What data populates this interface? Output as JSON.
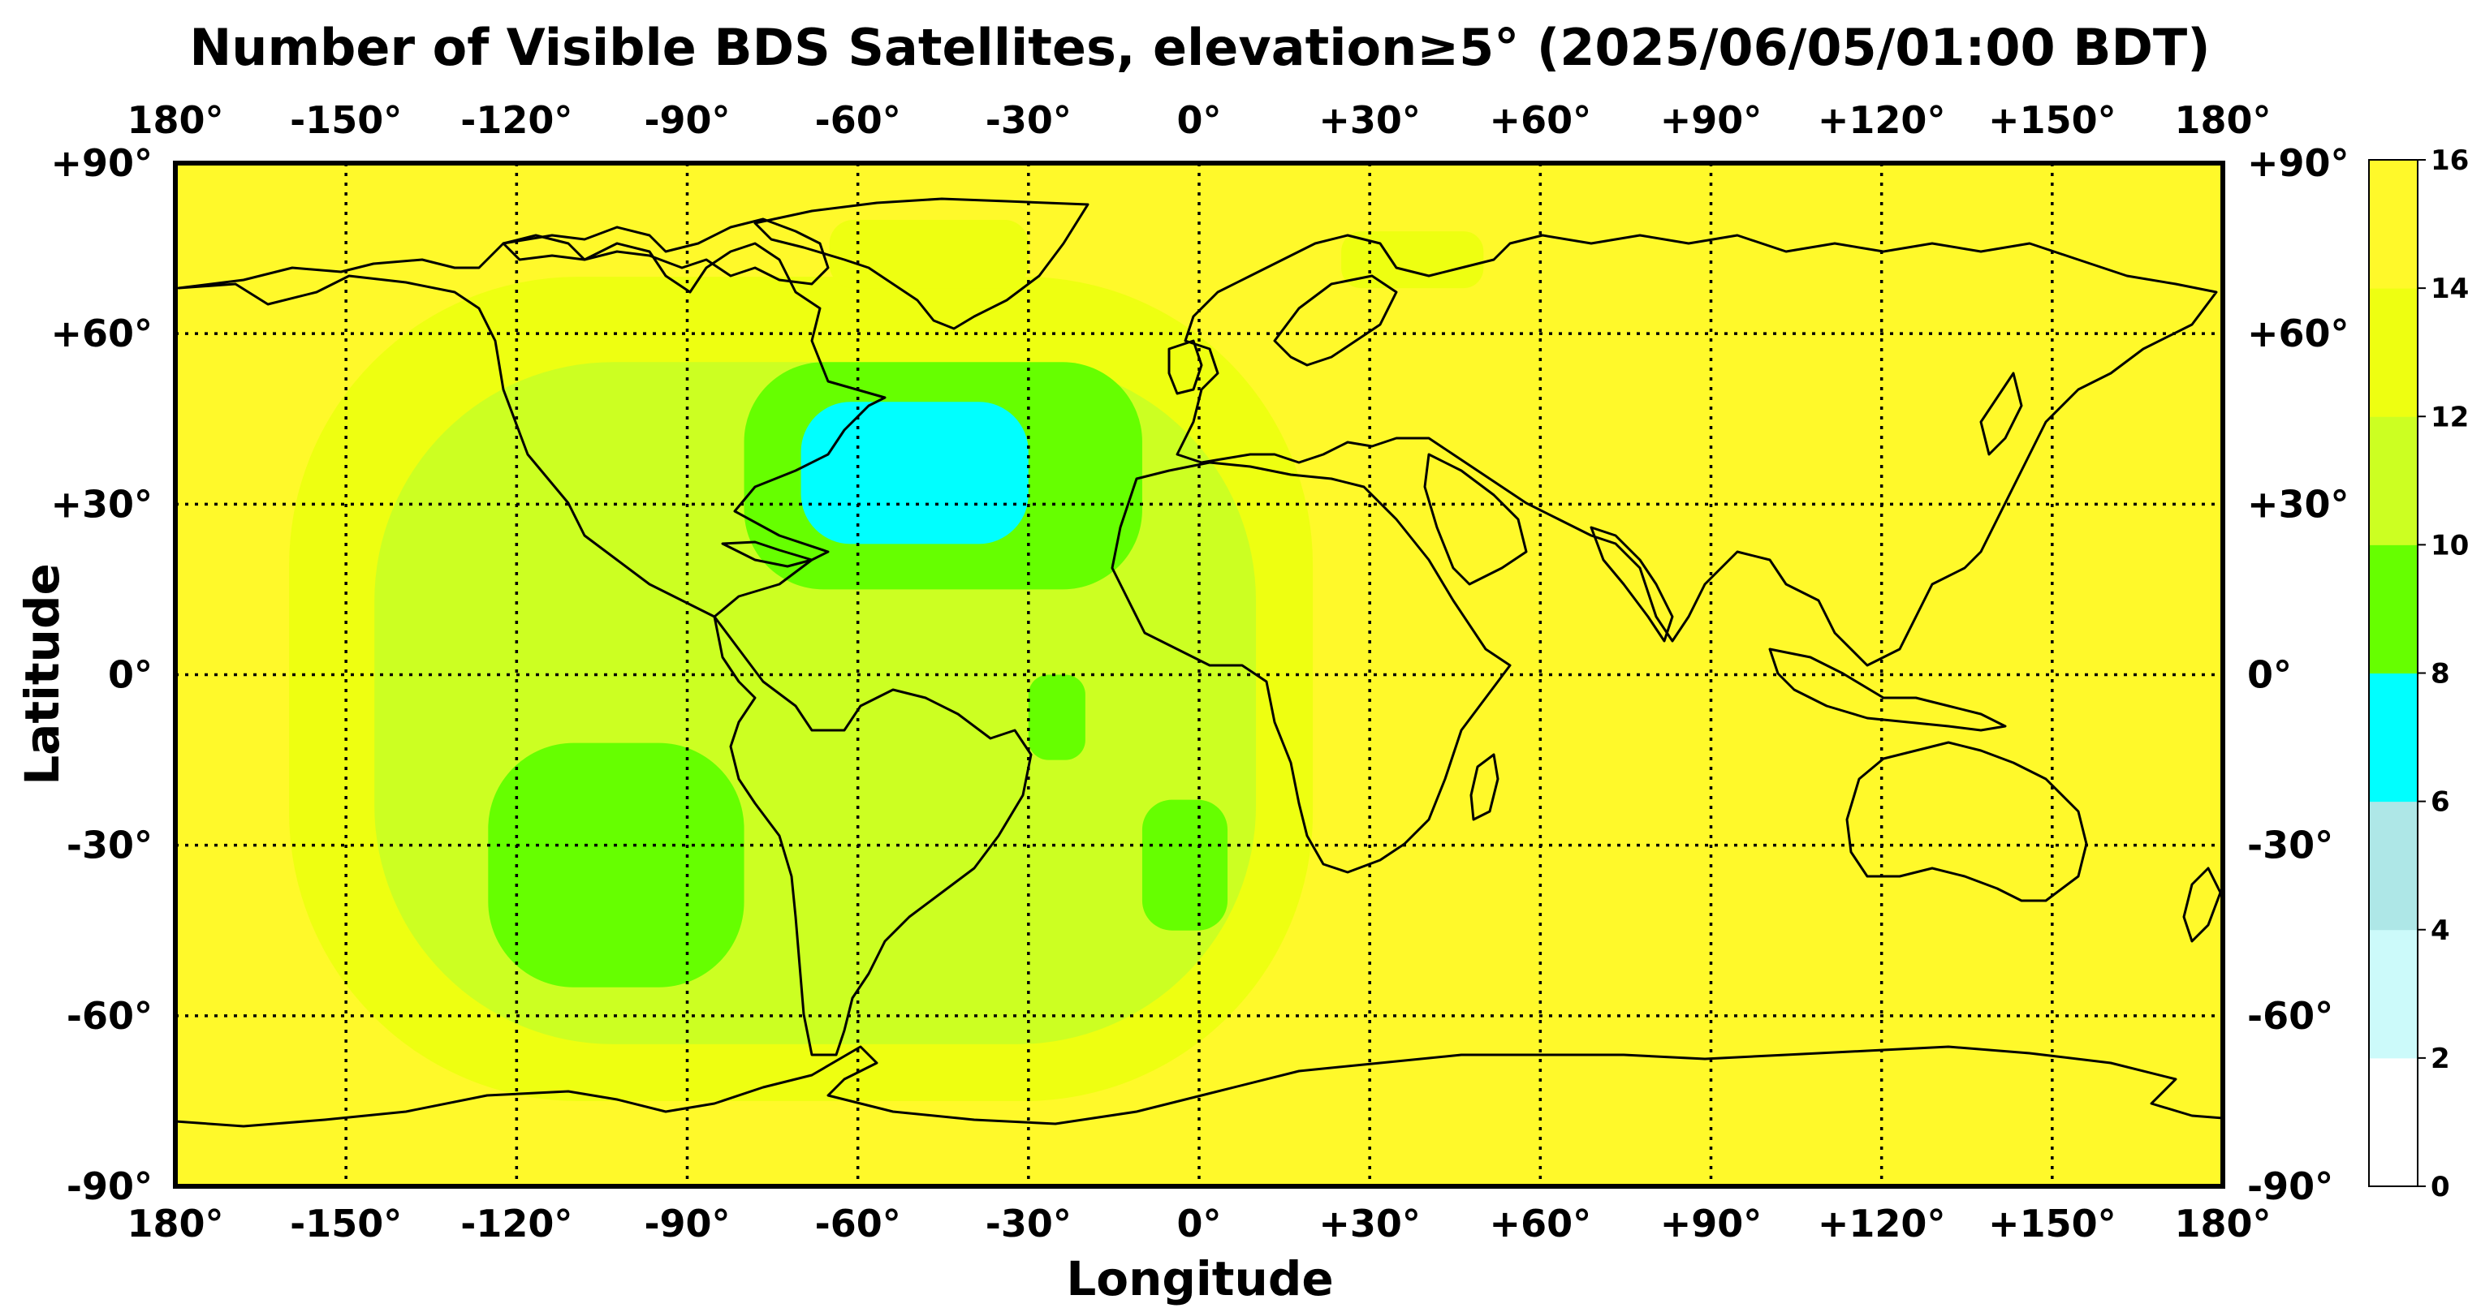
{
  "chart_data": {
    "type": "heatmap",
    "title": "Number of Visible BDS Satellites, elevation≥5° (2025/06/05/01:00 BDT)",
    "xlabel": "Longitude",
    "ylabel": "Latitude",
    "x_ticks": [
      "180°",
      "-150°",
      "-120°",
      "-90°",
      "-60°",
      "-30°",
      "0°",
      "+30°",
      "+60°",
      "+90°",
      "+120°",
      "+150°",
      "180°"
    ],
    "y_ticks": [
      "+90°",
      "+60°",
      "+30°",
      "0°",
      "-30°",
      "-60°",
      "-90°"
    ],
    "xlim": [
      -180,
      180
    ],
    "ylim": [
      -90,
      90
    ],
    "grid": true,
    "colorbar": {
      "ticks": [
        "16",
        "14",
        "12",
        "10",
        "8",
        "6",
        "4",
        "2",
        "0"
      ],
      "bins": [
        {
          "min": 0,
          "max": 2,
          "color": "#ffffff"
        },
        {
          "min": 2,
          "max": 4,
          "color": "#ccfafa"
        },
        {
          "min": 4,
          "max": 6,
          "color": "#aee7e7"
        },
        {
          "min": 6,
          "max": 8,
          "color": "#00ffff"
        },
        {
          "min": 8,
          "max": 10,
          "color": "#66ff00"
        },
        {
          "min": 10,
          "max": 12,
          "color": "#ccff22"
        },
        {
          "min": 12,
          "max": 14,
          "color": "#eeff11"
        },
        {
          "min": 14,
          "max": 16,
          "color": "#fff92a"
        }
      ]
    },
    "background_value_range": [
      14,
      16
    ],
    "regions": [
      {
        "value_range": [
          12,
          14
        ],
        "lon": [
          -160,
          20
        ],
        "lat": [
          -75,
          70
        ]
      },
      {
        "value_range": [
          12,
          14
        ],
        "lon": [
          -65,
          -30
        ],
        "lat": [
          68,
          80
        ]
      },
      {
        "value_range": [
          12,
          14
        ],
        "lon": [
          25,
          50
        ],
        "lat": [
          68,
          78
        ]
      },
      {
        "value_range": [
          10,
          12
        ],
        "lon": [
          -145,
          10
        ],
        "lat": [
          -65,
          55
        ]
      },
      {
        "value_range": [
          8,
          10
        ],
        "lon": [
          -80,
          -10
        ],
        "lat": [
          15,
          55
        ]
      },
      {
        "value_range": [
          8,
          10
        ],
        "lon": [
          -125,
          -80
        ],
        "lat": [
          -55,
          -12
        ]
      },
      {
        "value_range": [
          8,
          10
        ],
        "lon": [
          -10,
          5
        ],
        "lat": [
          -45,
          -22
        ]
      },
      {
        "value_range": [
          8,
          10
        ],
        "lon": [
          -30,
          -20
        ],
        "lat": [
          -15,
          0
        ]
      },
      {
        "value_range": [
          6,
          8
        ],
        "lon": [
          -70,
          -30
        ],
        "lat": [
          23,
          48
        ]
      }
    ]
  }
}
